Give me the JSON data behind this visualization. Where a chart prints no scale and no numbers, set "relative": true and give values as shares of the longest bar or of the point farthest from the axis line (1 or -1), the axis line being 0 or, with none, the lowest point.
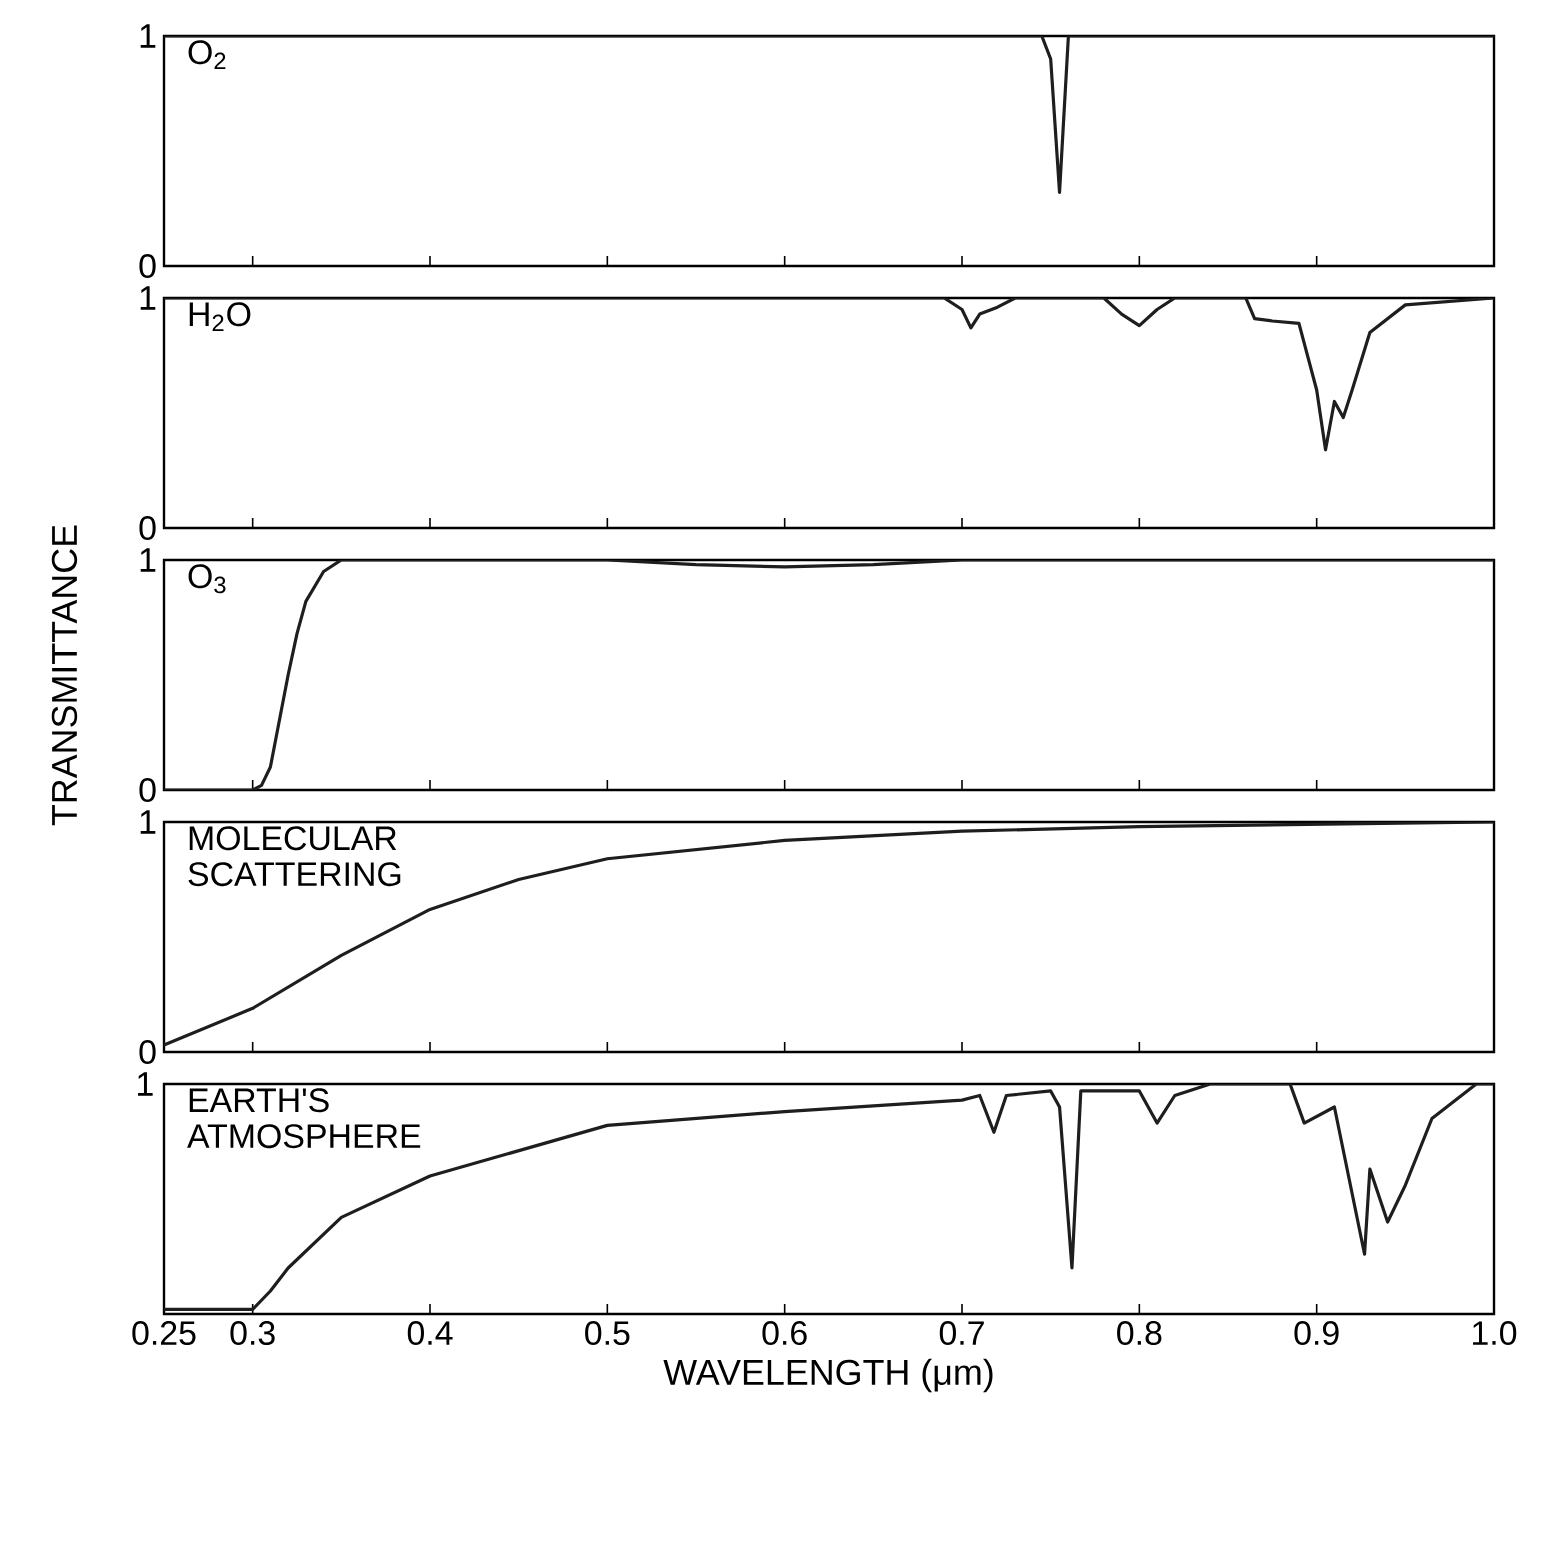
{
  "chart_data": [
    {
      "type": "line",
      "title": "O$_{2}$",
      "xlim": [
        0.25,
        1.0
      ],
      "xticks": [
        0.25,
        0.3,
        0.4,
        0.5,
        0.6,
        0.7,
        0.8,
        0.9,
        1.0
      ],
      "ylim": [
        0,
        1
      ],
      "yticks": [
        0,
        1
      ],
      "tick_labels": "y",
      "marker": "none",
      "line_style": "solid",
      "series": [
        {
          "color": "#1e1e1e",
          "x": [
            0.25,
            0.745,
            0.75,
            0.755,
            0.76,
            1.0
          ],
          "values": [
            1,
            1,
            0.9,
            0.32,
            1,
            1
          ]
        }
      ]
    },
    {
      "type": "line",
      "title": "H$_{2}$O",
      "xlim": [
        0.25,
        1.0
      ],
      "xticks": [
        0.25,
        0.3,
        0.4,
        0.5,
        0.6,
        0.7,
        0.8,
        0.9,
        1.0
      ],
      "ylim": [
        0,
        1
      ],
      "yticks": [
        0,
        1
      ],
      "tick_labels": "y",
      "marker": "none",
      "line_style": "solid",
      "series": [
        {
          "color": "#1e1e1e",
          "x": [
            0.25,
            0.69,
            0.7,
            0.705,
            0.71,
            0.72,
            0.73,
            0.78,
            0.79,
            0.8,
            0.81,
            0.82,
            0.86,
            0.865,
            0.875,
            0.89,
            0.9,
            0.905,
            0.91,
            0.915,
            0.92,
            0.93,
            0.95,
            1.0
          ],
          "values": [
            1,
            1,
            0.95,
            0.87,
            0.93,
            0.96,
            1,
            1,
            0.93,
            0.88,
            0.95,
            1,
            1,
            0.91,
            0.9,
            0.89,
            0.6,
            0.34,
            0.55,
            0.48,
            0.6,
            0.85,
            0.97,
            1
          ]
        }
      ]
    },
    {
      "type": "line",
      "title": "O$_{3}$",
      "ylabel": "TRANSMITTANCE",
      "xlim": [
        0.25,
        1.0
      ],
      "xticks": [
        0.25,
        0.3,
        0.4,
        0.5,
        0.6,
        0.7,
        0.8,
        0.9,
        1.0
      ],
      "ylim": [
        0,
        1
      ],
      "yticks": [
        0,
        1
      ],
      "tick_labels": "y",
      "marker": "none",
      "line_style": "solid",
      "series": [
        {
          "color": "#1e1e1e",
          "x": [
            0.25,
            0.3,
            0.305,
            0.31,
            0.315,
            0.32,
            0.325,
            0.33,
            0.34,
            0.35,
            0.5,
            0.55,
            0.6,
            0.65,
            0.7,
            1.0
          ],
          "values": [
            0,
            0,
            0.02,
            0.1,
            0.3,
            0.5,
            0.68,
            0.82,
            0.95,
            1,
            1,
            0.98,
            0.97,
            0.98,
            1,
            1
          ]
        }
      ]
    },
    {
      "type": "line",
      "title": "MOLECULAR SCATTERING",
      "xlim": [
        0.25,
        1.0
      ],
      "xticks": [
        0.25,
        0.3,
        0.4,
        0.5,
        0.6,
        0.7,
        0.8,
        0.9,
        1.0
      ],
      "ylim": [
        0,
        1
      ],
      "yticks": [
        0,
        1
      ],
      "tick_labels": "y",
      "marker": "none",
      "line_style": "solid",
      "series": [
        {
          "color": "#1e1e1e",
          "x": [
            0.25,
            0.3,
            0.35,
            0.4,
            0.45,
            0.5,
            0.6,
            0.7,
            0.8,
            1.0
          ],
          "values": [
            0.03,
            0.19,
            0.42,
            0.62,
            0.75,
            0.84,
            0.92,
            0.96,
            0.98,
            1.0
          ]
        }
      ]
    },
    {
      "type": "line",
      "title": "EARTH'S ATMOSPHERE",
      "xlabel": "WAVELENGTH (μm)",
      "xlim": [
        0.25,
        1.0
      ],
      "xticks": [
        0.25,
        0.3,
        0.4,
        0.5,
        0.6,
        0.7,
        0.8,
        0.9,
        {
          "value": 1.0,
          "label": "1.0"
        }
      ],
      "relative": true,
      "annotations": [
        "1"
      ],
      "tick_labels": "x",
      "marker": "none",
      "line_style": "solid",
      "series": [
        {
          "color": "#1e1e1e",
          "x": [
            0.25,
            0.3,
            0.31,
            0.32,
            0.35,
            0.4,
            0.5,
            0.6,
            0.7,
            0.71,
            0.718,
            0.725,
            0.75,
            0.755,
            0.762,
            0.767,
            0.8,
            0.81,
            0.82,
            0.84,
            0.885,
            0.893,
            0.91,
            0.927,
            0.93,
            0.94,
            0.95,
            0.965,
            0.99,
            1.0
          ],
          "values": [
            0.02,
            0.02,
            0.1,
            0.2,
            0.42,
            0.6,
            0.82,
            0.88,
            0.93,
            0.95,
            0.79,
            0.95,
            0.97,
            0.9,
            0.2,
            0.97,
            0.97,
            0.83,
            0.95,
            1,
            1,
            0.83,
            0.9,
            0.26,
            0.63,
            0.4,
            0.56,
            0.85,
            1,
            1
          ]
        }
      ]
    }
  ]
}
